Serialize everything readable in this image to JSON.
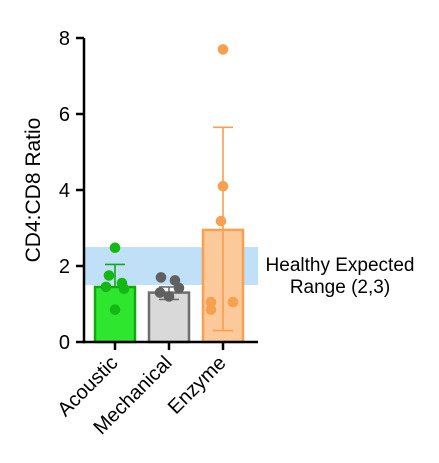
{
  "chart_data": {
    "type": "bar",
    "ylabel": "CD4:CD8 Ratio",
    "ylim": [
      0,
      8
    ],
    "yticks": [
      0,
      2,
      4,
      6,
      8
    ],
    "categories": [
      "Acoustic",
      "Mechanical",
      "Enzyme"
    ],
    "bars": [
      {
        "name": "Acoustic",
        "mean": 1.45,
        "error_low": 1.45,
        "error_high": 2.04,
        "points": [
          2.48,
          1.75,
          1.55,
          1.45,
          1.4,
          0.85
        ],
        "fill": "#2ee62e",
        "edge": "#13a813",
        "point_color": "#14b814"
      },
      {
        "name": "Mechanical",
        "mean": 1.3,
        "error_low": 1.12,
        "error_high": 1.45,
        "points": [
          1.7,
          1.62,
          1.42,
          1.3,
          1.2
        ],
        "fill": "#d9d9d9",
        "edge": "#6e6e6e",
        "point_color": "#606060"
      },
      {
        "name": "Enzyme",
        "mean": 2.95,
        "error_low": 0.3,
        "error_high": 5.65,
        "points": [
          7.7,
          4.1,
          3.18,
          1.05,
          1.05,
          0.85
        ],
        "fill": "#fcc99a",
        "edge": "#f7a04f",
        "point_color": "#f7a04f"
      }
    ],
    "reference_band": {
      "y_range": [
        1.5,
        2.5
      ],
      "color": "#bfe0f7",
      "label_lines": [
        "Healthy Expected",
        "Range (2,3)"
      ]
    },
    "grid": false,
    "legend": "none"
  }
}
